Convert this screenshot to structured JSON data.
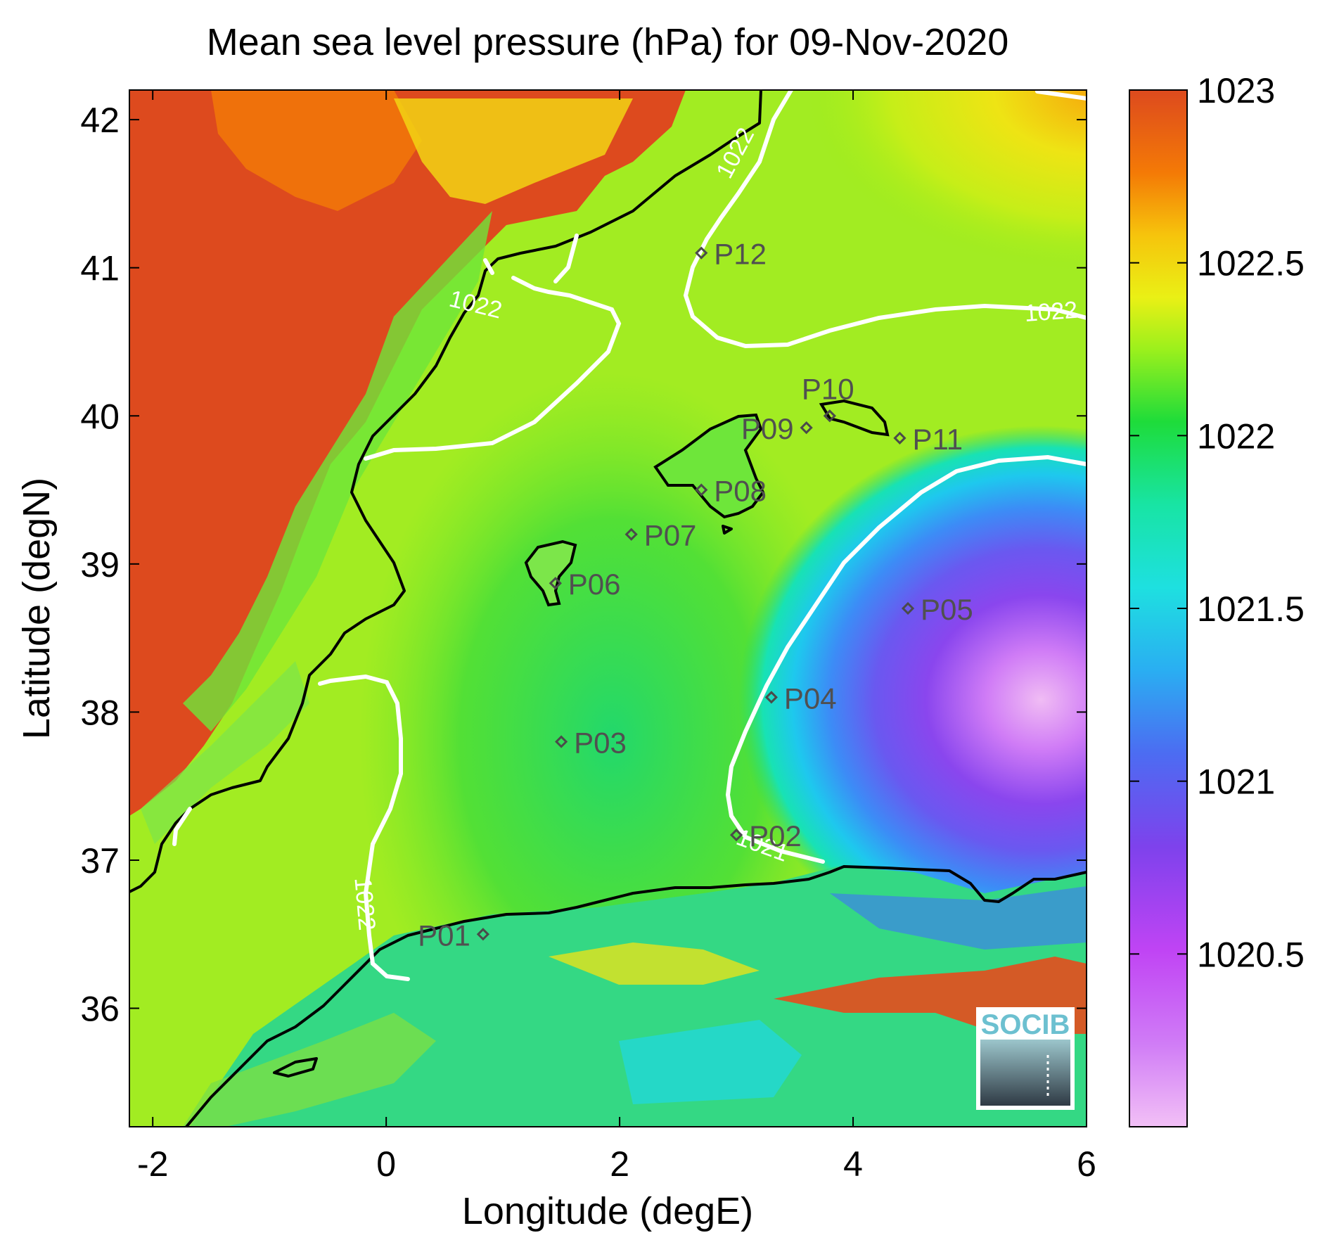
{
  "chart_data": {
    "type": "heatmap",
    "title": "Mean sea level pressure (hPa) for 09-Nov-2020",
    "xlabel": "Longitude (degE)",
    "ylabel": "Latitude (degN)",
    "xlim": [
      -2.2,
      6.0
    ],
    "ylim": [
      35.2,
      42.2
    ],
    "xticks": [
      -2,
      0,
      2,
      4,
      6
    ],
    "yticks": [
      36,
      37,
      38,
      39,
      40,
      41,
      42
    ],
    "colorbar": {
      "range": [
        1020.0,
        1023.0
      ],
      "ticks": [
        1020.5,
        1021,
        1021.5,
        1022,
        1022.5,
        1023
      ],
      "tick_labels": [
        "1020.5",
        "1021",
        "1021.5",
        "1022",
        "1022.5",
        "1023"
      ],
      "colors": [
        "#f2c0f6",
        "#c044f4",
        "#7e42ec",
        "#3c7cf6",
        "#1ec6f0",
        "#18e4b8",
        "#1edc3a",
        "#9cf01c",
        "#eaf015",
        "#f6b40a",
        "#f06a06",
        "#dd4a1e"
      ]
    },
    "grid": false,
    "contours": [
      {
        "label": "1022",
        "lon": 0.75,
        "lat": 40.7
      },
      {
        "label": "1022",
        "lon": 3.05,
        "lat": 41.75
      },
      {
        "label": "1022",
        "lon": 5.7,
        "lat": 40.65
      },
      {
        "label": "1022",
        "lon": -0.25,
        "lat": 36.7
      },
      {
        "label": "1021",
        "lon": 3.2,
        "lat": 37.05
      }
    ],
    "stations": [
      {
        "name": "P01",
        "lon": 0.83,
        "lat": 36.5
      },
      {
        "name": "P02",
        "lon": 3.0,
        "lat": 37.17
      },
      {
        "name": "P03",
        "lon": 1.5,
        "lat": 37.8
      },
      {
        "name": "P04",
        "lon": 3.3,
        "lat": 38.1
      },
      {
        "name": "P05",
        "lon": 4.47,
        "lat": 38.7
      },
      {
        "name": "P06",
        "lon": 1.45,
        "lat": 38.87
      },
      {
        "name": "P07",
        "lon": 2.1,
        "lat": 39.2
      },
      {
        "name": "P08",
        "lon": 2.7,
        "lat": 39.5
      },
      {
        "name": "P09",
        "lon": 3.6,
        "lat": 39.92
      },
      {
        "name": "P10",
        "lon": 3.8,
        "lat": 40.0
      },
      {
        "name": "P11",
        "lon": 4.4,
        "lat": 39.85
      },
      {
        "name": "P12",
        "lon": 2.7,
        "lat": 41.1
      }
    ]
  },
  "logo": {
    "text": "SOCIB"
  }
}
